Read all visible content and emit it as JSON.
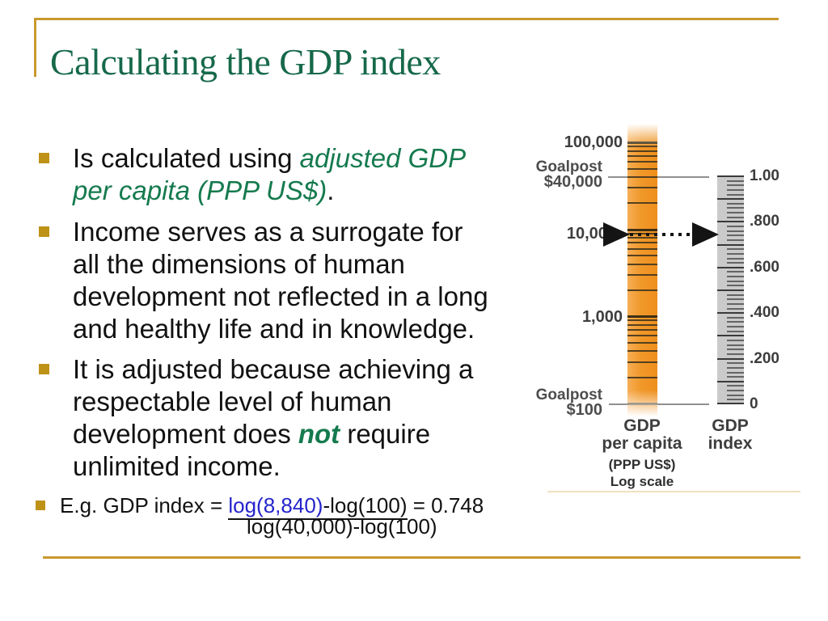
{
  "slide": {
    "title": "Calculating the GDP index",
    "bullets": {
      "b1": {
        "pre": "Is calculated using ",
        "green_line1": "adjusted GDP",
        "green_line2": "per capita (PPP US$)",
        "post": "."
      },
      "b2": {
        "line1": "Income serves as a surrogate for",
        "line2": "all the dimensions of human",
        "line3": "development not reflected in a long",
        "line4": "and healthy life and in knowledge."
      },
      "b3": {
        "line1": "It is adjusted because achieving a",
        "line2": "respectable level of human",
        "line3_pre": "development does ",
        "line3_em": "not",
        "line3_post": " require",
        "line4": "unlimited income."
      },
      "b4": {
        "pre": "E.g. GDP index = ",
        "link": "log(8,840)",
        "num_rest": "-log(100)",
        "result": " = 0.748",
        "denominator": "log(40,000)-log(100)"
      }
    }
  },
  "figure": {
    "type": "nomogram",
    "left_scale": {
      "top_label": "100,000",
      "goalpost_high_line1": "Goalpost",
      "goalpost_high_line2": "$40,000",
      "goalpost_high_value": 40000,
      "marker_label": "10,000",
      "mid_label": "1,000",
      "goalpost_low_line1": "Goalpost",
      "goalpost_low_line2": "$100",
      "goalpost_low_value": 100,
      "top_value": 100000,
      "scale": "log",
      "caption_line1": "GDP",
      "caption_line2": "per capita",
      "subcaption_line1": "(PPP US$)",
      "subcaption_line2": "Log scale"
    },
    "right_scale": {
      "caption_line1": "GDP",
      "caption_line2": "index",
      "tick_labels": [
        "1.00",
        ".800",
        ".600",
        ".400",
        ".200",
        "0"
      ],
      "tick_values": [
        1.0,
        0.8,
        0.6,
        0.4,
        0.2,
        0
      ],
      "minor_tick_step": 0.02,
      "major_tick_step": 0.1,
      "range": [
        0,
        1
      ]
    },
    "arrow": {
      "gdp_value": 8840,
      "index_value": 0.748
    }
  },
  "colors": {
    "accent_gold": "#C8992E",
    "bullet_gold": "#BD9217",
    "title_green": "#16694A",
    "text_green": "#157A4E",
    "link_blue": "#2424CC",
    "bar_orange": "#F0982A",
    "index_gray": "#CACACA"
  }
}
